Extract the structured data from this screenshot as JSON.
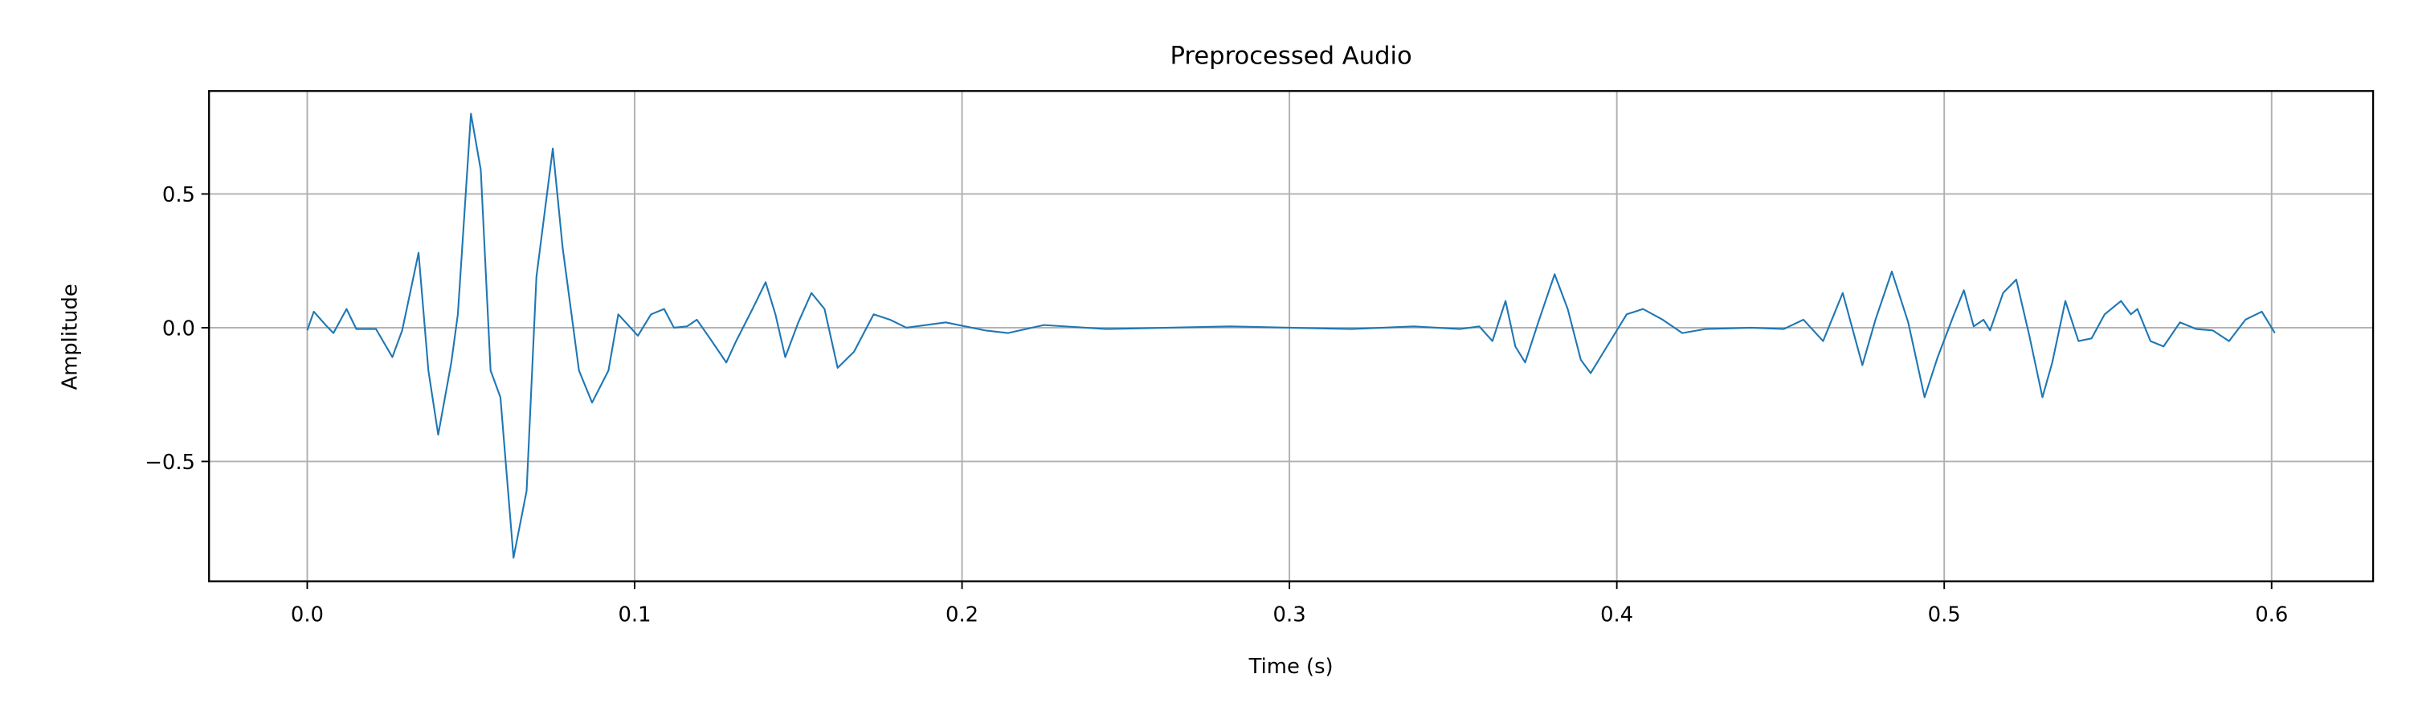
{
  "chart_data": {
    "type": "line",
    "title": "Preprocessed Audio",
    "xlabel": "Time (s)",
    "ylabel": "Amplitude",
    "x": [
      0,
      0.002,
      0.006,
      0.008,
      0.012,
      0.015,
      0.021,
      0.026,
      0.029,
      0.034,
      0.037,
      0.04,
      0.044,
      0.046,
      0.05,
      0.053,
      0.056,
      0.059,
      0.063,
      0.067,
      0.07,
      0.075,
      0.078,
      0.083,
      0.087,
      0.092,
      0.095,
      0.101,
      0.105,
      0.109,
      0.112,
      0.116,
      0.119,
      0.123,
      0.128,
      0.131,
      0.136,
      0.14,
      0.143,
      0.146,
      0.15,
      0.154,
      0.158,
      0.162,
      0.167,
      0.173,
      0.178,
      0.183,
      0.195,
      0.207,
      0.214,
      0.225,
      0.244,
      0.263,
      0.282,
      0.3,
      0.319,
      0.338,
      0.352,
      0.358,
      0.362,
      0.366,
      0.369,
      0.372,
      0.376,
      0.381,
      0.385,
      0.389,
      0.392,
      0.397,
      0.403,
      0.408,
      0.414,
      0.42,
      0.427,
      0.441,
      0.451,
      0.457,
      0.463,
      0.469,
      0.475,
      0.479,
      0.484,
      0.489,
      0.494,
      0.498,
      0.503,
      0.506,
      0.509,
      0.512,
      0.514,
      0.518,
      0.522,
      0.526,
      0.53,
      0.533,
      0.537,
      0.541,
      0.545,
      0.549,
      0.554,
      0.557,
      0.559,
      0.563,
      0.567,
      0.572,
      0.577,
      0.582,
      0.587,
      0.592,
      0.597,
      0.601
    ],
    "series": [
      {
        "color": "#1f77b4",
        "values": [
          -0.01,
          0.06,
          0.005,
          -0.02,
          0.07,
          -0.005,
          -0.005,
          -0.11,
          -0.01,
          0.28,
          -0.16,
          -0.4,
          -0.13,
          0.05,
          0.8,
          0.59,
          -0.16,
          -0.26,
          -0.86,
          -0.61,
          0.19,
          0.67,
          0.3,
          -0.16,
          -0.28,
          -0.16,
          0.05,
          -0.03,
          0.05,
          0.07,
          0.0,
          0.005,
          0.03,
          -0.04,
          -0.13,
          -0.05,
          0.07,
          0.17,
          0.05,
          -0.11,
          0.02,
          0.13,
          0.07,
          -0.15,
          -0.09,
          0.05,
          0.03,
          0.0,
          0.02,
          -0.01,
          -0.02,
          0.01,
          -0.005,
          0.0,
          0.005,
          0.0,
          -0.005,
          0.005,
          -0.005,
          0.005,
          -0.05,
          0.1,
          -0.07,
          -0.13,
          0.02,
          0.2,
          0.07,
          -0.12,
          -0.17,
          -0.07,
          0.05,
          0.07,
          0.03,
          -0.02,
          -0.005,
          0.0,
          -0.005,
          0.03,
          -0.05,
          0.13,
          -0.14,
          0.03,
          0.21,
          0.02,
          -0.26,
          -0.11,
          0.05,
          0.14,
          0.005,
          0.03,
          -0.01,
          0.13,
          0.18,
          -0.03,
          -0.26,
          -0.13,
          0.1,
          -0.05,
          -0.04,
          0.05,
          0.1,
          0.05,
          0.07,
          -0.05,
          -0.07,
          0.02,
          -0.005,
          -0.01,
          -0.05,
          0.03,
          0.06,
          -0.02
        ]
      }
    ],
    "xlim": [
      -0.03,
      0.631
    ],
    "ylim": [
      -0.948,
      0.885
    ],
    "xticks": [
      {
        "value": 0,
        "label": "0.0"
      },
      0.1,
      0.2,
      0.3,
      0.4,
      0.5,
      0.6
    ],
    "yticks": [
      {
        "value": -0.5,
        "label": "−0.5"
      },
      {
        "value": 0,
        "label": "0.0"
      },
      0.5
    ],
    "grid": true
  }
}
